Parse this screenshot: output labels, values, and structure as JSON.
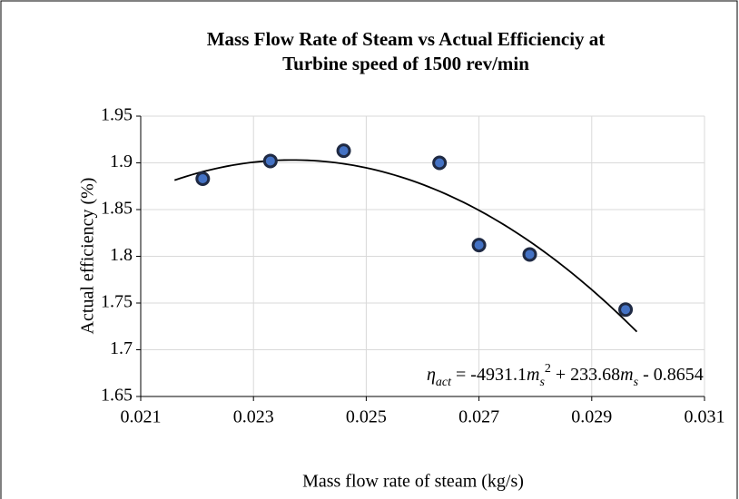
{
  "chart_data": {
    "type": "scatter",
    "title": [
      "Mass Flow Rate of Steam vs Actual Efficienciy at",
      "Turbine speed of 1500 rev/min"
    ],
    "x_label": "Mass flow rate of steam (kg/s)",
    "y_label": "Actual  efficiency (%)",
    "series": [
      {
        "name": "Actual efficiency",
        "color": "#4472c4",
        "edge_color": "#1f2a44",
        "x": [
          0.0221,
          0.0233,
          0.0246,
          0.0263,
          0.027,
          0.0279,
          0.0296
        ],
        "values": [
          1.883,
          1.902,
          1.913,
          1.9,
          1.812,
          1.802,
          1.743
        ]
      }
    ],
    "trendline": {
      "type": "polynomial",
      "coefficients": [
        -4931.1,
        233.68,
        -0.8654
      ],
      "xlim": [
        0.0216,
        0.0298
      ],
      "color": "#000000"
    },
    "annotation": {
      "parts": [
        {
          "text": "η",
          "style": "italic"
        },
        {
          "text": "act",
          "style": "italic",
          "shift": "sub"
        },
        {
          "text": " = -4931.1"
        },
        {
          "text": "m",
          "style": "italic"
        },
        {
          "text": "s",
          "style": "italic",
          "shift": "sub"
        },
        {
          "text": "2",
          "shift": "super"
        },
        {
          "text": " + 233.68"
        },
        {
          "text": "m",
          "style": "italic"
        },
        {
          "text": "s",
          "style": "italic",
          "shift": "sub"
        },
        {
          "text": " - 0.8654"
        }
      ]
    },
    "xlim": [
      0.021,
      0.031
    ],
    "xticks": [
      0.021,
      0.023,
      0.025,
      0.027,
      0.029,
      0.031
    ],
    "ylim": [
      1.65,
      1.95
    ],
    "yticks": [
      1.65,
      1.7,
      1.75,
      1.8,
      1.85,
      1.9,
      1.95
    ],
    "grid": true
  }
}
